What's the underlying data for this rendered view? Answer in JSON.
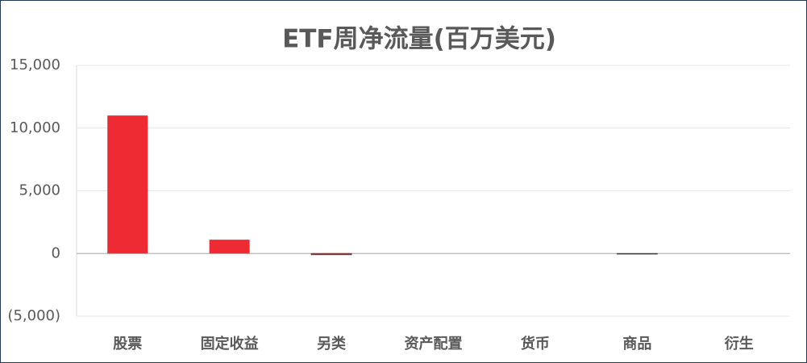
{
  "chart_data": {
    "type": "bar",
    "title": "ETF周净流量(百万美元)",
    "categories": [
      "股票",
      "固定收益",
      "另类",
      "资产配置",
      "货币",
      "商品",
      "衍生"
    ],
    "values": [
      11000,
      1100,
      -100,
      0,
      0,
      -50,
      0
    ],
    "color": "#ee2a33",
    "ylim": [
      -5000,
      15000
    ],
    "yticks": [
      {
        "value": -5000,
        "label": "(5,000)"
      },
      0,
      {
        "value": 5000,
        "label": "5,000"
      },
      {
        "value": 10000,
        "label": "10,000"
      },
      {
        "value": 15000,
        "label": "15,000"
      }
    ],
    "grid": true
  }
}
